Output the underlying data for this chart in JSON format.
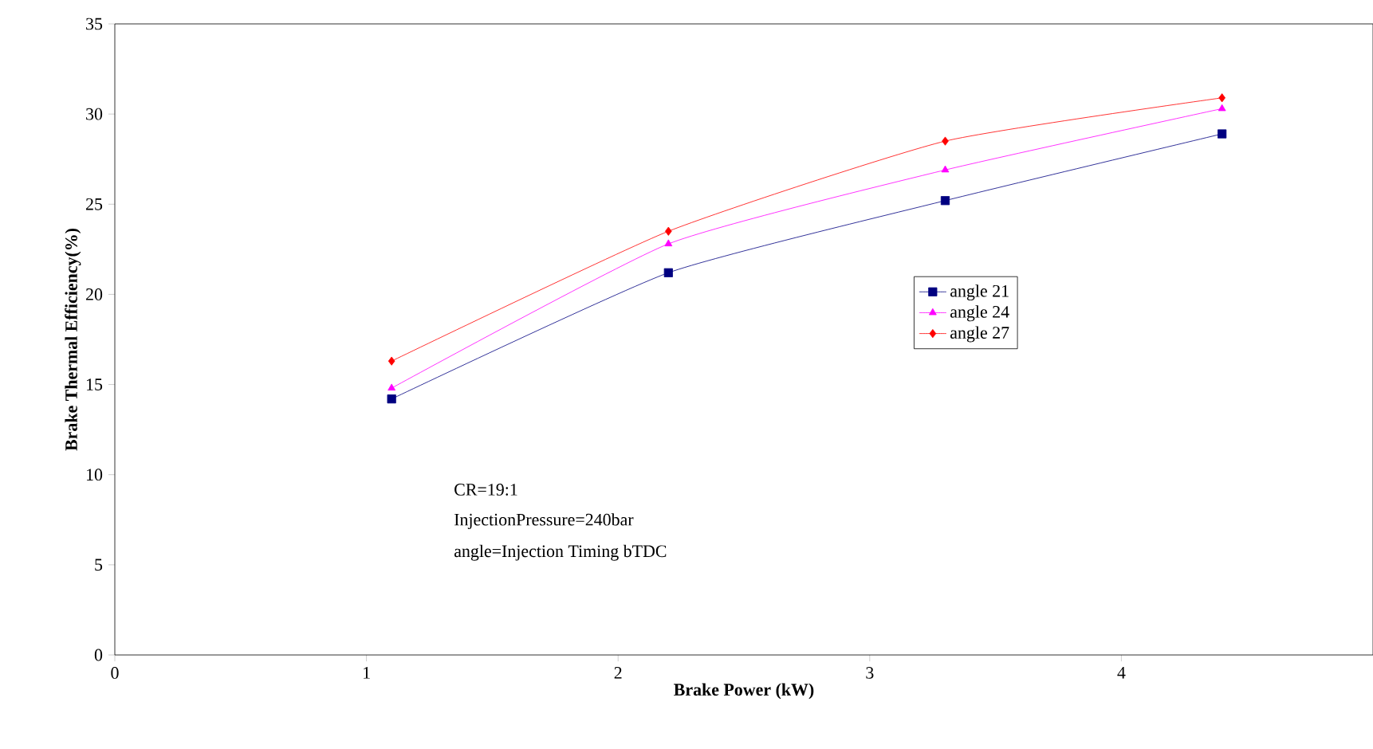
{
  "chart_data": {
    "type": "line",
    "xlabel": "Brake Power (kW)",
    "ylabel": "Brake Thermal Efficiency(%)",
    "x": [
      1.1,
      2.2,
      3.3,
      4.4
    ],
    "series": [
      {
        "name": "angle 21",
        "color": "#000080",
        "marker": "square",
        "values": [
          14.2,
          21.2,
          25.2,
          28.9
        ]
      },
      {
        "name": "angle 24",
        "color": "#ff00ff",
        "marker": "triangle",
        "values": [
          14.8,
          22.8,
          26.9,
          30.3
        ]
      },
      {
        "name": "angle 27",
        "color": "#ff0000",
        "marker": "diamond",
        "values": [
          16.3,
          23.5,
          28.5,
          30.9
        ]
      }
    ],
    "xlim": [
      0,
      5
    ],
    "xticks": [
      0,
      1,
      2,
      3,
      4
    ],
    "ylim": [
      0,
      35
    ],
    "yticks": [
      0,
      5,
      10,
      15,
      20,
      25,
      30,
      35
    ],
    "grid": false,
    "legend": "right",
    "line_style": "solid",
    "annotations": [
      "CR=19:1",
      "InjectionPressure=240bar",
      "angle=Injection Timing bTDC"
    ]
  }
}
